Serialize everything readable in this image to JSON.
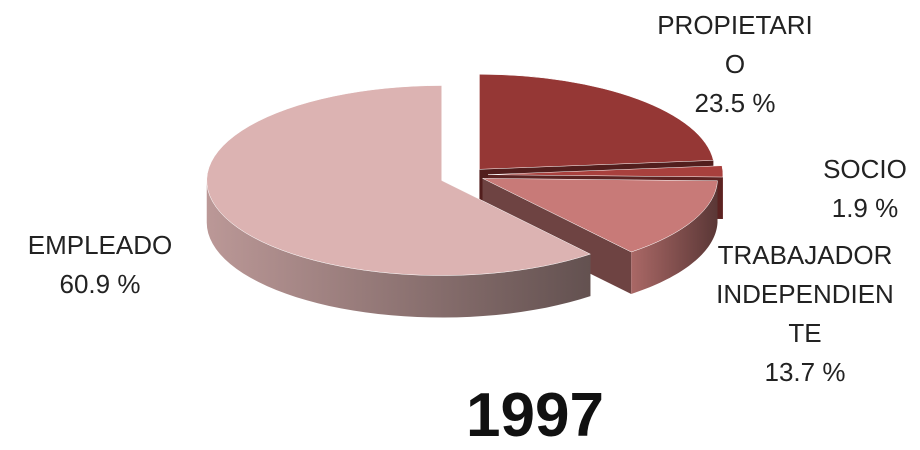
{
  "chart_data": {
    "type": "pie",
    "title": "1997",
    "categories": [
      "PROPIETARIO",
      "SOCIO",
      "TRABAJADOR INDEPENDIENTE",
      "EMPLEADO"
    ],
    "values": [
      23.5,
      1.9,
      13.7,
      60.9
    ],
    "value_labels": [
      "23.5 %",
      "1.9 %",
      "13.7 %",
      "60.9 %"
    ],
    "colors": [
      "#953735",
      "#a8403d",
      "#c87a78",
      "#dcb3b2"
    ]
  }
}
